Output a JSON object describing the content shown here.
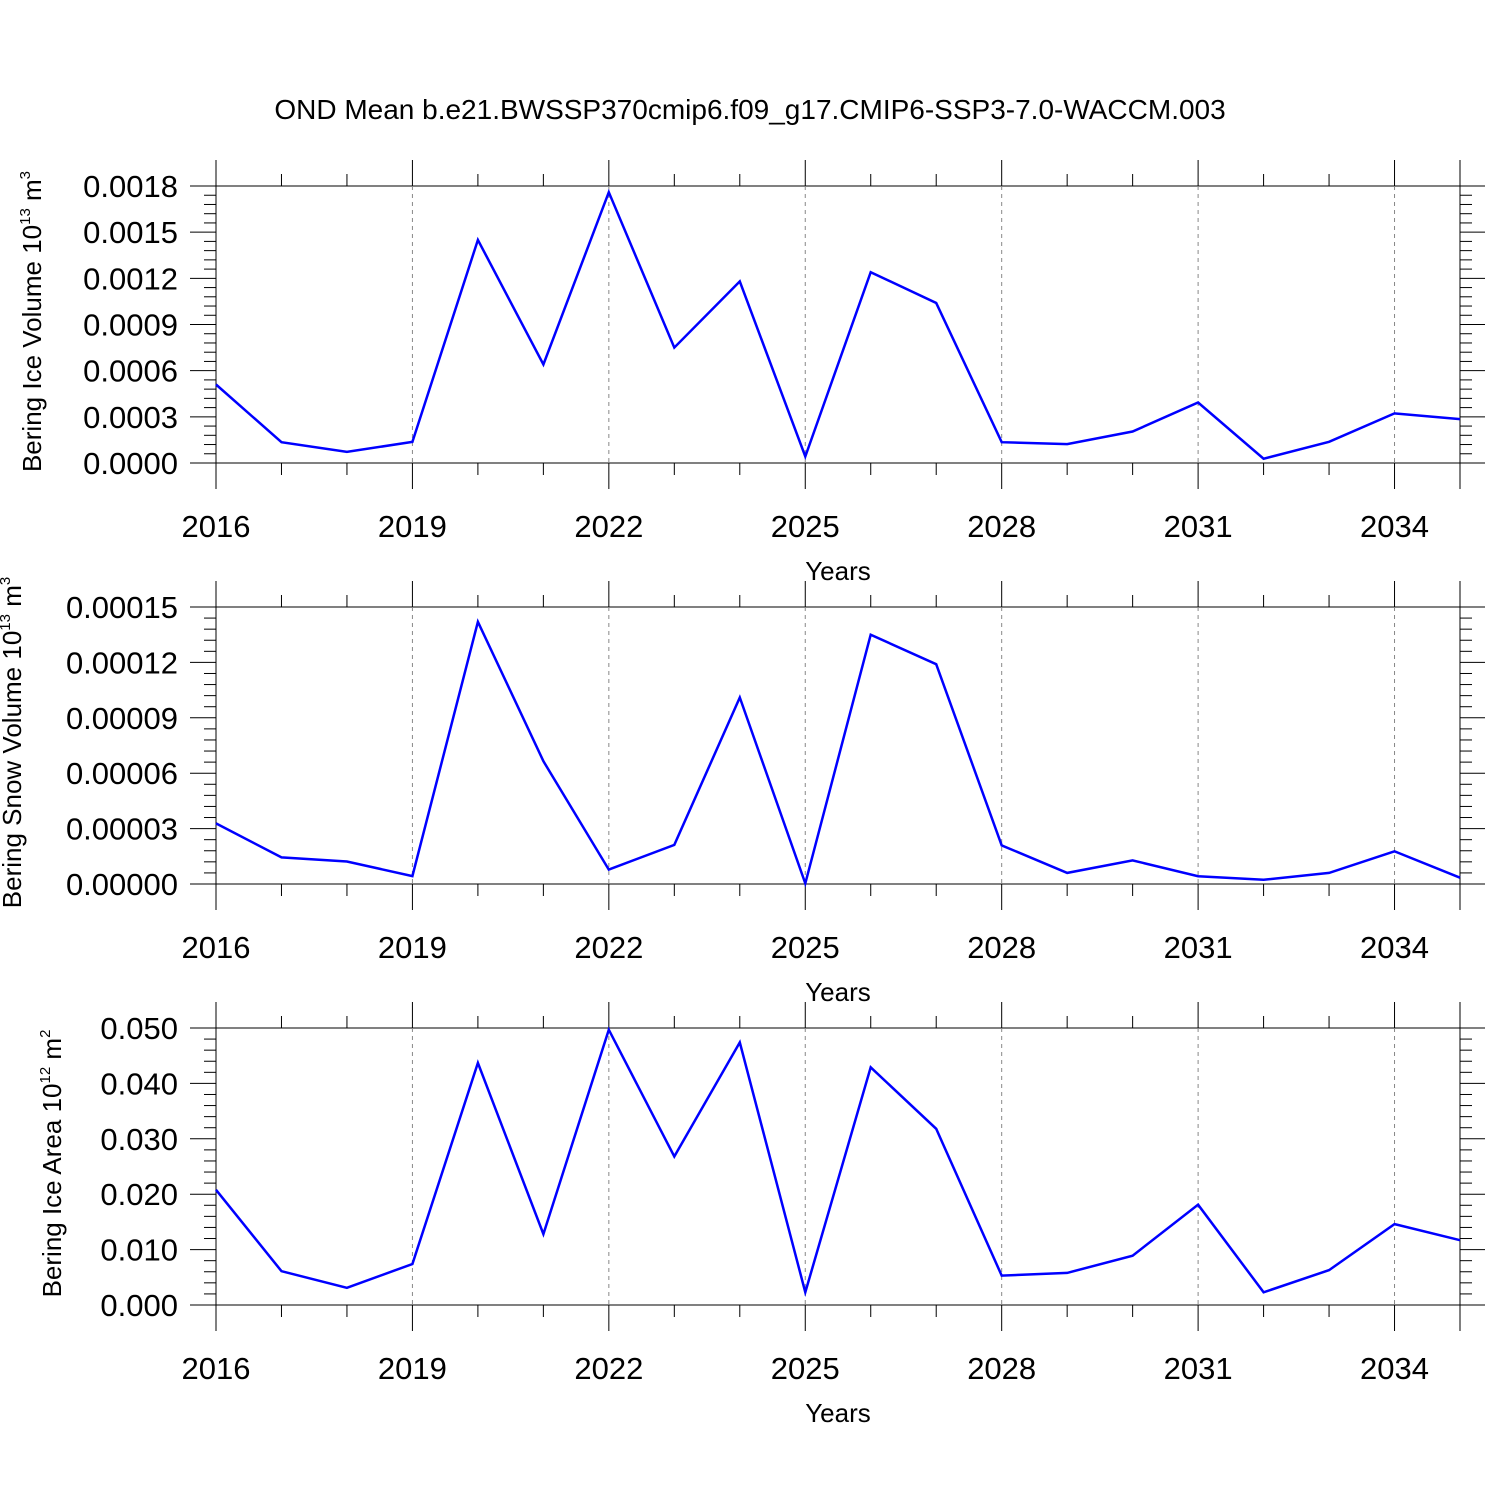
{
  "title": "OND Mean b.e21.BWSSP370cmip6.f09_g17.CMIP6-SSP3-7.0-WACCM.003",
  "colors": {
    "line": "#0000ff",
    "axis": "#000000",
    "grid": "#888888"
  },
  "chart_data": [
    {
      "type": "line",
      "xlabel": "Years",
      "ylabel": {
        "text": "Bering Ice Volume 10",
        "sup1": "13",
        "unit": " m",
        "sup2": "3"
      },
      "xticks": [
        2016,
        2019,
        2022,
        2025,
        2028,
        2031,
        2034
      ],
      "xlim": [
        2016,
        2035
      ],
      "ylim": [
        0,
        0.0018
      ],
      "ytick_labels": [
        "0.0000",
        "0.0003",
        "0.0006",
        "0.0009",
        "0.0012",
        "0.0015",
        "0.0018"
      ],
      "grid": "vertical dashed at major x ticks",
      "series": [
        {
          "x": [
            2016,
            2017,
            2018,
            2019,
            2020,
            2021,
            2022,
            2023,
            2024,
            2025,
            2026,
            2027,
            2028,
            2029,
            2030,
            2031,
            2032,
            2033,
            2034,
            2035
          ],
          "values": [
            0.00051,
            0.000135,
            7.2e-05,
            0.000137,
            0.00145,
            0.00064,
            0.00176,
            0.00075,
            0.00118,
            4.2e-05,
            0.00124,
            0.00104,
            0.000135,
            0.000123,
            0.000205,
            0.000393,
            2.8e-05,
            0.000138,
            0.000322,
            0.000285
          ]
        }
      ]
    },
    {
      "type": "line",
      "xlabel": "Years",
      "ylabel": {
        "text": "Bering Snow Volume 10",
        "sup1": "13",
        "unit": " m",
        "sup2": "3"
      },
      "xticks": [
        2016,
        2019,
        2022,
        2025,
        2028,
        2031,
        2034
      ],
      "xlim": [
        2016,
        2035
      ],
      "ylim": [
        0,
        0.00015
      ],
      "ytick_labels": [
        "0.00000",
        "0.00003",
        "0.00006",
        "0.00009",
        "0.00012",
        "0.00015"
      ],
      "grid": "vertical dashed at major x ticks",
      "series": [
        {
          "x": [
            2016,
            2017,
            2018,
            2019,
            2020,
            2021,
            2022,
            2023,
            2024,
            2025,
            2026,
            2027,
            2028,
            2029,
            2030,
            2031,
            2032,
            2033,
            2034,
            2035
          ],
          "values": [
            3.28e-05,
            1.44e-05,
            1.22e-05,
            4.3e-06,
            0.000142,
            6.65e-05,
            7.8e-06,
            2.12e-05,
            0.000101,
            3e-07,
            0.000135,
            0.000119,
            2.09e-05,
            6e-06,
            1.28e-05,
            4.2e-06,
            2.3e-06,
            6e-06,
            1.77e-05,
            3.4e-06
          ]
        }
      ]
    },
    {
      "type": "line",
      "xlabel": "Years",
      "ylabel": {
        "text": "Bering Ice Area 10",
        "sup1": "12",
        "unit": " m",
        "sup2": "2"
      },
      "xticks": [
        2016,
        2019,
        2022,
        2025,
        2028,
        2031,
        2034
      ],
      "xlim": [
        2016,
        2035
      ],
      "ylim": [
        0,
        0.05
      ],
      "ytick_labels": [
        "0.000",
        "0.010",
        "0.020",
        "0.030",
        "0.040",
        "0.050"
      ],
      "grid": "vertical dashed at major x ticks",
      "series": [
        {
          "x": [
            2016,
            2017,
            2018,
            2019,
            2020,
            2021,
            2022,
            2023,
            2024,
            2025,
            2026,
            2027,
            2028,
            2029,
            2030,
            2031,
            2032,
            2033,
            2034,
            2035
          ],
          "values": [
            0.0208,
            0.0061,
            0.0031,
            0.0074,
            0.0437,
            0.0128,
            0.0497,
            0.0268,
            0.0474,
            0.0023,
            0.0429,
            0.0318,
            0.0053,
            0.0058,
            0.0089,
            0.0181,
            0.0023,
            0.0063,
            0.0146,
            0.0117
          ]
        }
      ]
    }
  ]
}
